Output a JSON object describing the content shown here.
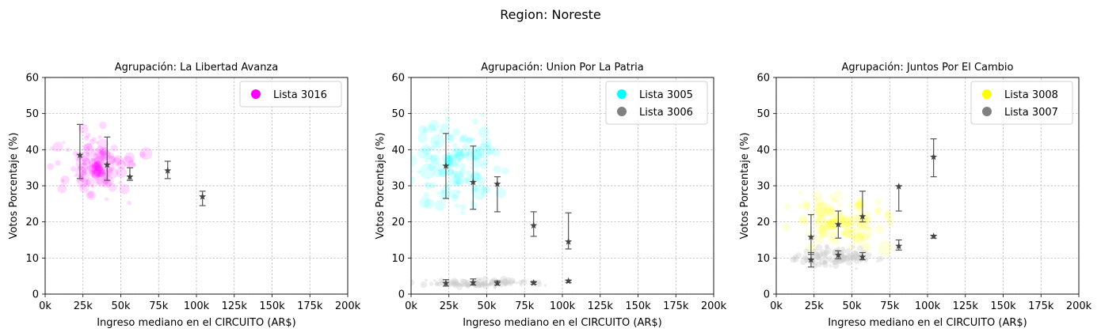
{
  "suptitle": "Region: Noreste",
  "chart_data": [
    {
      "type": "scatter",
      "title": "Agrupación: La Libertad Avanza",
      "xlabel": "Ingreso mediano en el CIRCUITO (AR$)",
      "ylabel": "Votos Porcentaje (%)",
      "xlim": [
        0,
        200000
      ],
      "ylim": [
        0,
        60
      ],
      "xticks": [
        "0k",
        "25k",
        "50k",
        "75k",
        "100k",
        "125k",
        "150k",
        "175k",
        "200k"
      ],
      "yticks": [
        "0",
        "10",
        "20",
        "30",
        "40",
        "50",
        "60"
      ],
      "grid": true,
      "legend_position": "top-right",
      "legend": [
        {
          "name": "Lista 3016",
          "color": "#ff00ff"
        }
      ],
      "series": [
        {
          "name": "Lista 3016",
          "color": "#ff00ff",
          "cloud": {
            "x_center": 35000,
            "x_spread": 25000,
            "y_center": 36,
            "y_spread": 9,
            "count": 120
          },
          "summary": [
            {
              "x": 23000,
              "y": 38.5,
              "low": 32.0,
              "high": 47.0
            },
            {
              "x": 41000,
              "y": 35.8,
              "low": 31.5,
              "high": 43.5
            },
            {
              "x": 56000,
              "y": 32.5,
              "low": 31.5,
              "high": 35.0
            },
            {
              "x": 81000,
              "y": 34.2,
              "low": 32.0,
              "high": 36.8
            },
            {
              "x": 104000,
              "y": 27.0,
              "low": 24.5,
              "high": 28.5
            }
          ]
        }
      ]
    },
    {
      "type": "scatter",
      "title": "Agrupación: Union Por La Patria",
      "xlabel": "Ingreso mediano en el CIRCUITO (AR$)",
      "ylabel": "Votos Porcentaje (%)",
      "xlim": [
        0,
        200000
      ],
      "ylim": [
        0,
        60
      ],
      "xticks": [
        "0k",
        "25k",
        "50k",
        "75k",
        "100k",
        "125k",
        "150k",
        "175k",
        "200k"
      ],
      "yticks": [
        "0",
        "10",
        "20",
        "30",
        "40",
        "50",
        "60"
      ],
      "grid": true,
      "legend_position": "top-right",
      "legend": [
        {
          "name": "Lista 3005",
          "color": "#00ffff"
        },
        {
          "name": "Lista 3006",
          "color": "#808080"
        }
      ],
      "series": [
        {
          "name": "Lista 3005",
          "color": "#00ffff",
          "cloud": {
            "x_center": 30000,
            "x_spread": 28000,
            "y_center": 36,
            "y_spread": 13,
            "count": 130
          },
          "summary": [
            {
              "x": 23000,
              "y": 35.5,
              "low": 26.5,
              "high": 44.5
            },
            {
              "x": 41000,
              "y": 31.0,
              "low": 23.5,
              "high": 41.0
            },
            {
              "x": 57000,
              "y": 30.5,
              "low": 22.8,
              "high": 32.5
            },
            {
              "x": 81000,
              "y": 19.0,
              "low": 16.0,
              "high": 22.8
            },
            {
              "x": 104000,
              "y": 14.5,
              "low": 12.5,
              "high": 22.5
            }
          ]
        },
        {
          "name": "Lista 3006",
          "color": "#808080",
          "cloud": {
            "x_center": 45000,
            "x_spread": 35000,
            "y_center": 3,
            "y_spread": 1,
            "count": 100
          },
          "summary": [
            {
              "x": 23000,
              "y": 3.0,
              "low": 2.2,
              "high": 4.0
            },
            {
              "x": 41000,
              "y": 3.2,
              "low": 2.5,
              "high": 4.2
            },
            {
              "x": 57000,
              "y": 3.0,
              "low": 2.5,
              "high": 3.6
            },
            {
              "x": 81000,
              "y": 3.1,
              "low": 2.7,
              "high": 3.5
            },
            {
              "x": 104000,
              "y": 3.6,
              "low": 3.2,
              "high": 3.9
            }
          ]
        }
      ]
    },
    {
      "type": "scatter",
      "title": "Agrupación: Juntos Por El Cambio",
      "xlabel": "Ingreso mediano en el CIRCUITO (AR$)",
      "ylabel": "Votos Porcentaje (%)",
      "xlim": [
        0,
        200000
      ],
      "ylim": [
        0,
        60
      ],
      "xticks": [
        "0k",
        "25k",
        "50k",
        "75k",
        "100k",
        "125k",
        "150k",
        "175k",
        "200k"
      ],
      "yticks": [
        "0",
        "10",
        "20",
        "30",
        "40",
        "50",
        "60"
      ],
      "grid": true,
      "legend_position": "top-right",
      "legend": [
        {
          "name": "Lista 3008",
          "color": "#ffff00"
        },
        {
          "name": "Lista 3007",
          "color": "#808080"
        }
      ],
      "series": [
        {
          "name": "Lista 3008",
          "color": "#ffff00",
          "cloud": {
            "x_center": 45000,
            "x_spread": 30000,
            "y_center": 20,
            "y_spread": 7,
            "count": 120
          },
          "summary": [
            {
              "x": 23000,
              "y": 15.8,
              "low": 11.0,
              "high": 22.0
            },
            {
              "x": 41000,
              "y": 19.3,
              "low": 15.5,
              "high": 23.0
            },
            {
              "x": 57000,
              "y": 21.5,
              "low": 20.0,
              "high": 28.5
            },
            {
              "x": 81000,
              "y": 29.8,
              "low": 23.0,
              "high": 30.0
            },
            {
              "x": 104000,
              "y": 38.0,
              "low": 32.5,
              "high": 43.0
            }
          ]
        },
        {
          "name": "Lista 3007",
          "color": "#808080",
          "cloud": {
            "x_center": 40000,
            "x_spread": 28000,
            "y_center": 10,
            "y_spread": 3,
            "count": 110
          },
          "summary": [
            {
              "x": 23000,
              "y": 9.5,
              "low": 7.5,
              "high": 11.5
            },
            {
              "x": 41000,
              "y": 10.8,
              "low": 9.8,
              "high": 12.0
            },
            {
              "x": 57000,
              "y": 10.3,
              "low": 9.5,
              "high": 11.5
            },
            {
              "x": 81000,
              "y": 13.3,
              "low": 12.2,
              "high": 15.0
            },
            {
              "x": 104000,
              "y": 16.0,
              "low": 15.5,
              "high": 16.3
            }
          ]
        }
      ]
    }
  ]
}
